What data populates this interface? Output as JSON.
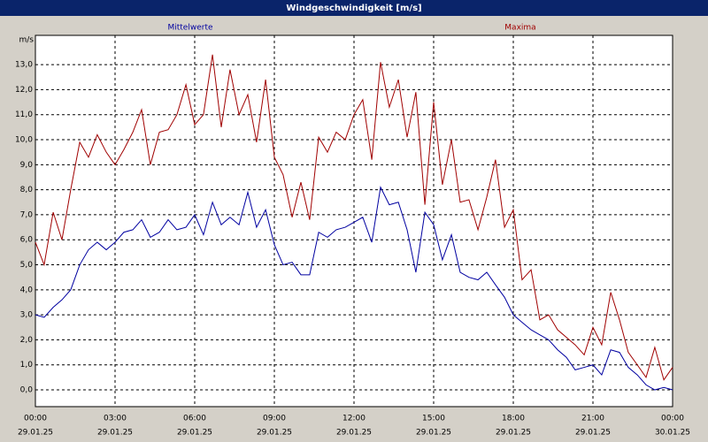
{
  "chart_data": {
    "type": "line",
    "title": "Windgeschwindigkeit [m/s]",
    "y_unit": "m/s",
    "x": [
      0,
      0.33,
      0.67,
      1,
      1.33,
      1.67,
      2,
      2.33,
      2.67,
      3,
      3.33,
      3.67,
      4,
      4.33,
      4.67,
      5,
      5.33,
      5.67,
      6,
      6.33,
      6.67,
      7,
      7.33,
      7.67,
      8,
      8.33,
      8.67,
      9,
      9.33,
      9.67,
      10,
      10.33,
      10.67,
      11,
      11.33,
      11.67,
      12,
      12.33,
      12.67,
      13,
      13.33,
      13.67,
      14,
      14.33,
      14.67,
      15,
      15.33,
      15.67,
      16,
      16.33,
      16.67,
      17,
      17.33,
      17.67,
      18,
      18.33,
      18.67,
      19,
      19.33,
      19.67,
      20,
      20.33,
      20.67,
      21,
      21.33,
      21.67,
      22,
      22.33,
      22.67,
      23,
      23.33,
      23.67,
      24
    ],
    "series": [
      {
        "name": "Mittelwerte",
        "color": "#0000a0",
        "values": [
          3.0,
          2.9,
          3.3,
          3.6,
          4.0,
          5.0,
          5.6,
          5.9,
          5.6,
          5.9,
          6.3,
          6.4,
          6.8,
          6.1,
          6.3,
          6.8,
          6.4,
          6.5,
          7.0,
          6.2,
          7.5,
          6.6,
          6.9,
          6.6,
          7.9,
          6.5,
          7.2,
          5.8,
          5.0,
          5.1,
          4.6,
          4.6,
          6.3,
          6.1,
          6.4,
          6.5,
          6.7,
          6.9,
          5.9,
          8.1,
          7.4,
          7.5,
          6.4,
          4.7,
          7.1,
          6.6,
          5.2,
          6.2,
          4.7,
          4.5,
          4.4,
          4.7,
          4.2,
          3.7,
          3.0,
          2.7,
          2.4,
          2.2,
          2.0,
          1.6,
          1.3,
          0.8,
          0.9,
          1.0,
          0.6,
          1.6,
          1.5,
          0.9,
          0.6,
          0.2,
          0.0,
          0.1,
          0.0
        ]
      },
      {
        "name": "Maxima",
        "color": "#a00000",
        "values": [
          5.9,
          5.0,
          7.1,
          6.0,
          8.0,
          9.9,
          9.3,
          10.2,
          9.5,
          9.0,
          9.6,
          10.3,
          11.2,
          9.0,
          10.3,
          10.4,
          11.0,
          12.2,
          10.6,
          11.0,
          13.4,
          10.5,
          12.8,
          11.0,
          11.8,
          9.9,
          12.4,
          9.3,
          8.6,
          6.9,
          8.3,
          6.8,
          10.1,
          9.5,
          10.3,
          10.0,
          11.0,
          11.6,
          9.2,
          13.1,
          11.3,
          12.4,
          10.1,
          11.9,
          7.4,
          11.5,
          8.2,
          10.0,
          7.5,
          7.6,
          6.4,
          7.7,
          9.2,
          6.5,
          7.2,
          4.4,
          4.8,
          2.8,
          3.0,
          2.4,
          2.1,
          1.8,
          1.4,
          2.5,
          1.8,
          3.9,
          2.8,
          1.5,
          1.0,
          0.5,
          1.7,
          0.4,
          0.9
        ]
      }
    ],
    "xlim": [
      0,
      24
    ],
    "xticks": [
      {
        "value": 0,
        "label": "00:00"
      },
      {
        "value": 3,
        "label": "03:00"
      },
      {
        "value": 6,
        "label": "06:00"
      },
      {
        "value": 9,
        "label": "09:00"
      },
      {
        "value": 12,
        "label": "12:00"
      },
      {
        "value": 15,
        "label": "15:00"
      },
      {
        "value": 18,
        "label": "18:00"
      },
      {
        "value": 21,
        "label": "21:00"
      },
      {
        "value": 24,
        "label": "00:00"
      }
    ],
    "xtick_dates": [
      "29.01.25",
      "29.01.25",
      "29.01.25",
      "29.01.25",
      "29.01.25",
      "29.01.25",
      "29.01.25",
      "29.01.25",
      "30.01.25"
    ],
    "ylim": [
      -0.67,
      14.17
    ],
    "yticks": [
      {
        "value": 0,
        "label": "0,0"
      },
      {
        "value": 1,
        "label": "1,0"
      },
      {
        "value": 2,
        "label": "2,0"
      },
      {
        "value": 3,
        "label": "3,0"
      },
      {
        "value": 4,
        "label": "4,0"
      },
      {
        "value": 5,
        "label": "5,0"
      },
      {
        "value": 6,
        "label": "6,0"
      },
      {
        "value": 7,
        "label": "7,0"
      },
      {
        "value": 8,
        "label": "8,0"
      },
      {
        "value": 9,
        "label": "9,0"
      },
      {
        "value": 10,
        "label": "10,0"
      },
      {
        "value": 11,
        "label": "11,0"
      },
      {
        "value": 12,
        "label": "12,0"
      },
      {
        "value": 13,
        "label": "13,0"
      }
    ],
    "grid": true
  }
}
